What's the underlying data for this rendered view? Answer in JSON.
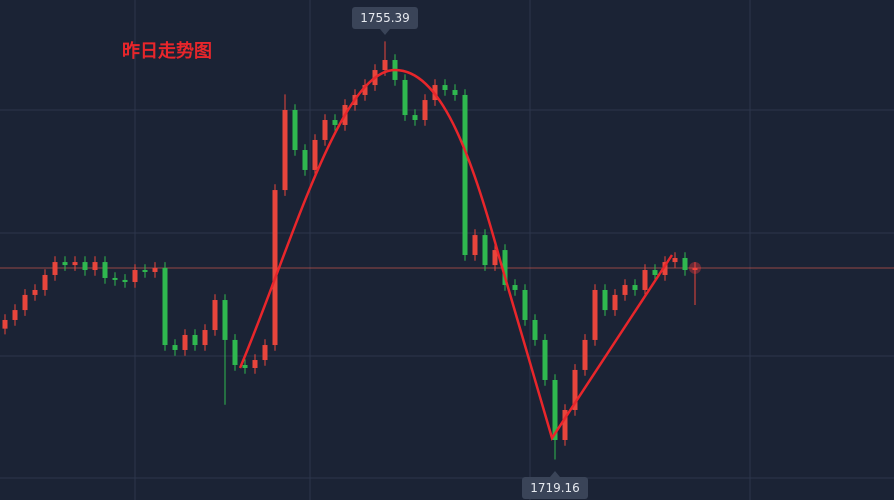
{
  "chart_data": {
    "type": "candlestick",
    "title": "昨日走势图",
    "up_color": "#e8453c",
    "down_color": "#2fb84f",
    "ylim": [
      1715.65,
      1758.98
    ],
    "open": [
      1730.5,
      1731.25,
      1732.11,
      1733.42,
      1733.85,
      1735.15,
      1736.27,
      1736.01,
      1736.27,
      1735.58,
      1736.27,
      1734.89,
      1734.72,
      1734.54,
      1735.58,
      1735.41,
      1735.76,
      1729.08,
      1728.65,
      1729.95,
      1729.08,
      1730.38,
      1732.98,
      1729.52,
      1727.35,
      1727.09,
      1727.78,
      1729.08,
      1742.51,
      1749.45,
      1745.98,
      1744.25,
      1746.85,
      1748.58,
      1748.15,
      1749.88,
      1750.75,
      1751.61,
      1752.91,
      1753.78,
      1752.05,
      1749.01,
      1748.58,
      1750.31,
      1751.61,
      1751.18,
      1750.75,
      1736.88,
      1738.61,
      1736.01,
      1737.31,
      1734.28,
      1733.85,
      1731.25,
      1729.52,
      1726.05,
      1720.85,
      1723.45,
      1726.92,
      1729.52,
      1733.85,
      1732.11,
      1733.42,
      1734.28,
      1733.85,
      1735.58,
      1735.15,
      1736.27,
      1736.62,
      1735.58
    ],
    "high": [
      1731.75,
      1732.61,
      1733.92,
      1734.35,
      1735.65,
      1736.77,
      1736.77,
      1736.77,
      1736.77,
      1736.77,
      1736.77,
      1735.39,
      1735.22,
      1736.08,
      1736.08,
      1736.26,
      1736.26,
      1729.58,
      1730.45,
      1730.45,
      1730.88,
      1733.48,
      1733.48,
      1730.02,
      1727.85,
      1728.28,
      1729.58,
      1743.01,
      1750.8,
      1749.95,
      1746.48,
      1747.35,
      1749.08,
      1749.08,
      1750.38,
      1751.25,
      1752.11,
      1753.41,
      1755.39,
      1754.28,
      1752.55,
      1749.51,
      1750.81,
      1752.11,
      1752.11,
      1751.68,
      1751.25,
      1739.11,
      1739.11,
      1737.81,
      1737.81,
      1734.78,
      1734.35,
      1731.75,
      1730.02,
      1726.55,
      1723.95,
      1727.42,
      1730.02,
      1734.35,
      1734.35,
      1733.92,
      1734.78,
      1734.78,
      1736.08,
      1736.08,
      1736.77,
      1737.12,
      1737.12,
      1736.26
    ],
    "low": [
      1730.0,
      1730.75,
      1731.61,
      1732.92,
      1733.35,
      1734.65,
      1735.51,
      1735.51,
      1735.08,
      1735.08,
      1734.39,
      1734.22,
      1734.04,
      1734.04,
      1734.91,
      1734.91,
      1728.58,
      1728.15,
      1728.15,
      1728.58,
      1728.58,
      1729.88,
      1723.9,
      1726.85,
      1726.59,
      1726.59,
      1727.28,
      1728.58,
      1742.01,
      1745.48,
      1743.75,
      1743.75,
      1746.35,
      1747.65,
      1747.65,
      1749.38,
      1750.25,
      1751.11,
      1752.41,
      1751.55,
      1748.51,
      1748.08,
      1748.08,
      1749.81,
      1750.68,
      1750.25,
      1736.38,
      1736.38,
      1735.51,
      1735.51,
      1733.78,
      1733.35,
      1730.75,
      1729.02,
      1725.55,
      1719.16,
      1720.35,
      1722.95,
      1726.42,
      1729.02,
      1731.61,
      1731.61,
      1732.92,
      1733.35,
      1733.35,
      1734.65,
      1734.65,
      1735.77,
      1735.08,
      1732.55
    ],
    "close": [
      1731.25,
      1732.11,
      1733.42,
      1733.85,
      1735.15,
      1736.27,
      1736.01,
      1736.27,
      1735.58,
      1736.27,
      1734.89,
      1734.72,
      1734.54,
      1735.58,
      1735.41,
      1735.76,
      1729.08,
      1728.65,
      1729.95,
      1729.08,
      1730.38,
      1732.98,
      1729.52,
      1727.35,
      1727.09,
      1727.78,
      1729.08,
      1742.51,
      1749.45,
      1745.98,
      1744.25,
      1746.85,
      1748.58,
      1748.15,
      1749.88,
      1750.75,
      1751.61,
      1752.91,
      1753.78,
      1752.05,
      1749.01,
      1748.58,
      1750.31,
      1751.61,
      1751.18,
      1750.75,
      1736.88,
      1738.61,
      1736.01,
      1737.31,
      1734.28,
      1733.85,
      1731.25,
      1729.52,
      1726.05,
      1720.85,
      1723.45,
      1726.92,
      1729.52,
      1733.85,
      1732.11,
      1733.42,
      1734.28,
      1733.85,
      1735.58,
      1735.15,
      1736.27,
      1736.62,
      1735.58,
      1735.76
    ]
  }
}
